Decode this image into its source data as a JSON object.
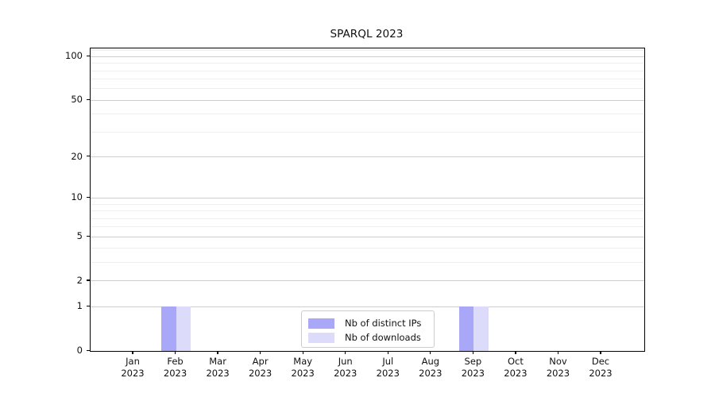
{
  "chart_data": {
    "type": "bar",
    "title": "SPARQL 2023",
    "categories": [
      "Jan",
      "Feb",
      "Mar",
      "Apr",
      "May",
      "Jun",
      "Jul",
      "Aug",
      "Sep",
      "Oct",
      "Nov",
      "Dec"
    ],
    "category_year": "2023",
    "series": [
      {
        "name": "Nb of distinct IPs",
        "color": "#a9a8f8",
        "values": [
          0,
          1,
          0,
          0,
          0,
          0,
          0,
          0,
          1,
          0,
          0,
          0
        ]
      },
      {
        "name": "Nb of downloads",
        "color": "#dcdbfa",
        "values": [
          0,
          1,
          0,
          0,
          0,
          0,
          0,
          0,
          1,
          0,
          0,
          0
        ]
      }
    ],
    "xlabel": "",
    "ylabel": "",
    "y_axis": {
      "ticks": [
        100,
        50,
        20,
        10,
        5,
        2,
        1,
        0
      ],
      "minor_gridlines": [
        3,
        4,
        6,
        7,
        8,
        9,
        30,
        40,
        60,
        70,
        80,
        90,
        110
      ],
      "scale": "log1p",
      "ylim": [
        0,
        114
      ]
    },
    "grid": "horizontal major and minor, light gray",
    "legend": {
      "position": "lower center, inside plot"
    }
  },
  "colors": {
    "grid_major": "#cdcdcd",
    "grid_minor": "#efefef",
    "spine": "#000000",
    "text": "#111111",
    "legend_border": "#cccccc"
  }
}
